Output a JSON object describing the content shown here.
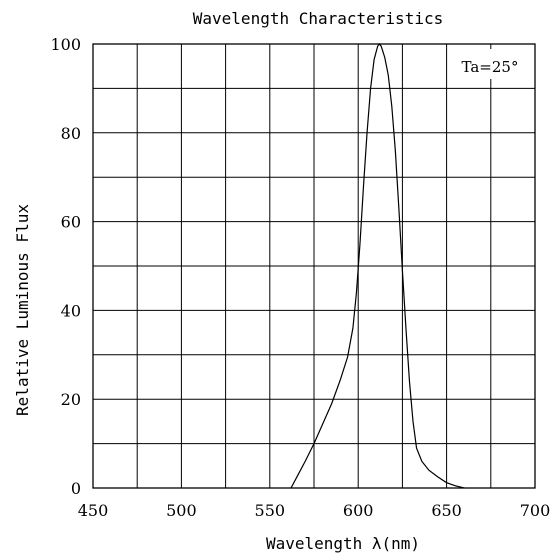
{
  "chart_data": {
    "type": "line",
    "title": "Wavelength Characteristics",
    "xlabel": "Wavelength λ(nm)",
    "ylabel": "Relative Luminous Flux",
    "annotation": "Ta=25°",
    "xlim": [
      450,
      700
    ],
    "ylim": [
      0,
      100
    ],
    "xticks": [
      450,
      500,
      550,
      600,
      650,
      700
    ],
    "yticks": [
      0,
      20,
      40,
      60,
      80,
      100
    ],
    "grid": true,
    "series": [
      {
        "x": [
          562,
          566,
          570,
          575,
          580,
          585,
          590,
          594,
          597,
          599,
          601,
          603,
          605,
          607,
          609,
          611,
          612,
          613,
          615,
          617,
          619,
          621,
          623,
          625,
          627,
          629,
          631,
          633,
          636,
          640,
          645,
          650,
          655,
          660
        ],
        "y": [
          0,
          3,
          6,
          10,
          14.5,
          19,
          24.5,
          29.5,
          36,
          44,
          55,
          68,
          80,
          90,
          96.5,
          99.5,
          100,
          99.5,
          97,
          93,
          86,
          76,
          63,
          49,
          36,
          24,
          15,
          9,
          6,
          4,
          2.5,
          1.2,
          0.5,
          0
        ]
      }
    ]
  }
}
